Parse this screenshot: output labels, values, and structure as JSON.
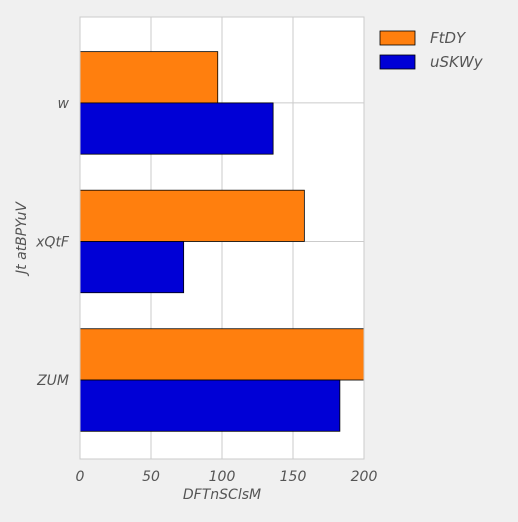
{
  "chart_data": {
    "type": "bar",
    "orientation": "horizontal",
    "categories": [
      "w",
      "xQtF",
      "ZUM"
    ],
    "series": [
      {
        "name": "FtDY",
        "color": "#ff7f0e",
        "values": [
          97,
          158,
          200
        ]
      },
      {
        "name": "uSKWy",
        "color": "#0000d6",
        "values": [
          136,
          73,
          183
        ]
      }
    ],
    "xlabel": "DFTnSClsM",
    "ylabel": "Jt atBPYuV",
    "xlim": [
      0,
      200
    ],
    "xticks": [
      0,
      50,
      100,
      150,
      200
    ],
    "grid": true,
    "legend_position": "outside-right-top"
  }
}
